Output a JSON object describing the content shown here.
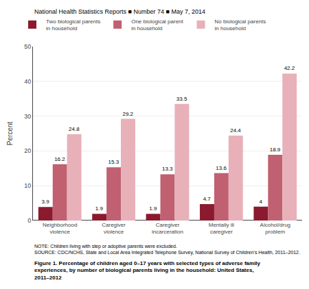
{
  "chart_data": {
    "type": "bar",
    "title": "Figure 1. Percentage of children aged 0–17 years with selected types of adverse family\nexperiences, by number of biological parents living in the household: United States,\n2011–2012",
    "subtitle": "National Health Statistics Reports ■ Number 74 ■ May 7, 2014",
    "annotations": [
      "NOTE: Children living with step or adoptive parents were excluded.\nSOURCE: CDC/NCHS, State and Local Area Integrated Telephone Survey, National Survey of Children's Health, 2011–2012."
    ],
    "ylabel": "Percent",
    "categories": [
      "Neighborhood\nviolence",
      "Caregiver\nviolence",
      "Caregiver\nincarceration",
      "Mentally ill\ncaregiver",
      "Alcohol/drug\nproblem"
    ],
    "series": [
      {
        "name": "Two biological parents\nin household",
        "color": "#8B1A2E",
        "values": [
          3.9,
          1.9,
          1.9,
          4.7,
          4.0
        ]
      },
      {
        "name": "One biological parent\nin household",
        "color": "#C06070",
        "values": [
          16.2,
          15.3,
          13.3,
          13.6,
          18.9
        ]
      },
      {
        "name": "No biological parents\nin household",
        "color": "#E8B0B8",
        "values": [
          24.8,
          29.2,
          33.5,
          24.4,
          42.2
        ]
      }
    ],
    "ylim": [
      0,
      50
    ],
    "yticks": [
      0,
      10,
      20,
      30,
      40,
      50
    ],
    "grid": true,
    "legend": "top",
    "data_labels": true
  }
}
